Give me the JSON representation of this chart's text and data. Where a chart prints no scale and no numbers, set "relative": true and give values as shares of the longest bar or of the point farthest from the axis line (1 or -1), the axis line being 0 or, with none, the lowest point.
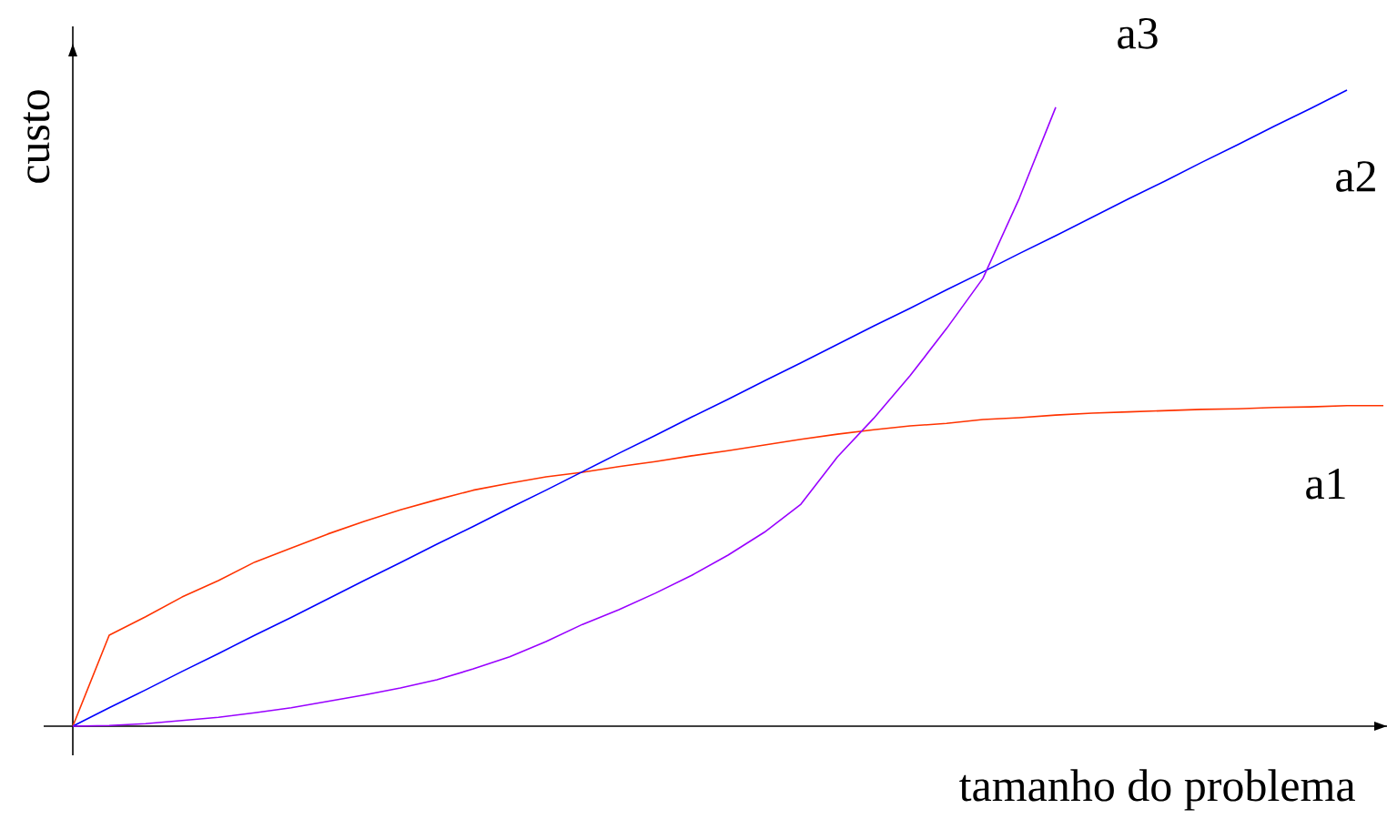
{
  "chart_data": {
    "type": "line",
    "relative": true,
    "xlabel": "tamanho do problema",
    "ylabel": "custo",
    "legend": false,
    "categories": [
      null,
      null,
      null,
      null,
      null,
      null,
      null,
      null,
      null,
      null,
      null,
      null,
      null,
      null,
      null,
      null,
      null,
      null,
      null,
      null,
      null,
      null,
      null,
      null,
      null,
      null,
      null,
      null,
      null,
      null,
      null,
      null,
      null,
      null,
      null,
      null,
      null
    ],
    "series": [
      {
        "name": "a1",
        "color": "#ff3300",
        "values": [
          0,
          0.143,
          0.172,
          0.203,
          0.229,
          0.258,
          0.28,
          0.302,
          0.322,
          0.34,
          0.356,
          0.371,
          0.382,
          0.392,
          0.399,
          0.408,
          0.416,
          0.425,
          0.433,
          0.442,
          0.451,
          0.459,
          0.466,
          0.472,
          0.476,
          0.482,
          0.485,
          0.489,
          0.492,
          0.494,
          0.496,
          0.498,
          0.499,
          0.501,
          0.502,
          0.504,
          0.504
        ]
      },
      {
        "name": "a2",
        "color": "#0000ff",
        "values": [
          0,
          0.029,
          0.057,
          0.086,
          0.114,
          0.143,
          0.171,
          0.2,
          0.229,
          0.257,
          0.286,
          0.314,
          0.343,
          0.371,
          0.4,
          0.429,
          0.457,
          0.486,
          0.514,
          0.543,
          0.571,
          0.6,
          0.629,
          0.657,
          0.686,
          0.714,
          0.743,
          0.771,
          0.8,
          0.829,
          0.857,
          0.886,
          0.914,
          0.943,
          0.971,
          1,
          null
        ]
      },
      {
        "name": "a3",
        "color": "#9900ff",
        "values": [
          0,
          0.001,
          0.004,
          0.009,
          0.014,
          0.021,
          0.029,
          0.039,
          0.049,
          0.06,
          0.073,
          0.09,
          0.109,
          0.133,
          0.16,
          0.183,
          0.209,
          0.237,
          0.269,
          0.305,
          0.349,
          0.423,
          0.484,
          0.551,
          0.625,
          0.704,
          0.83,
          0.973,
          null,
          null,
          null,
          null,
          null,
          null,
          null,
          null,
          null
        ]
      }
    ]
  }
}
